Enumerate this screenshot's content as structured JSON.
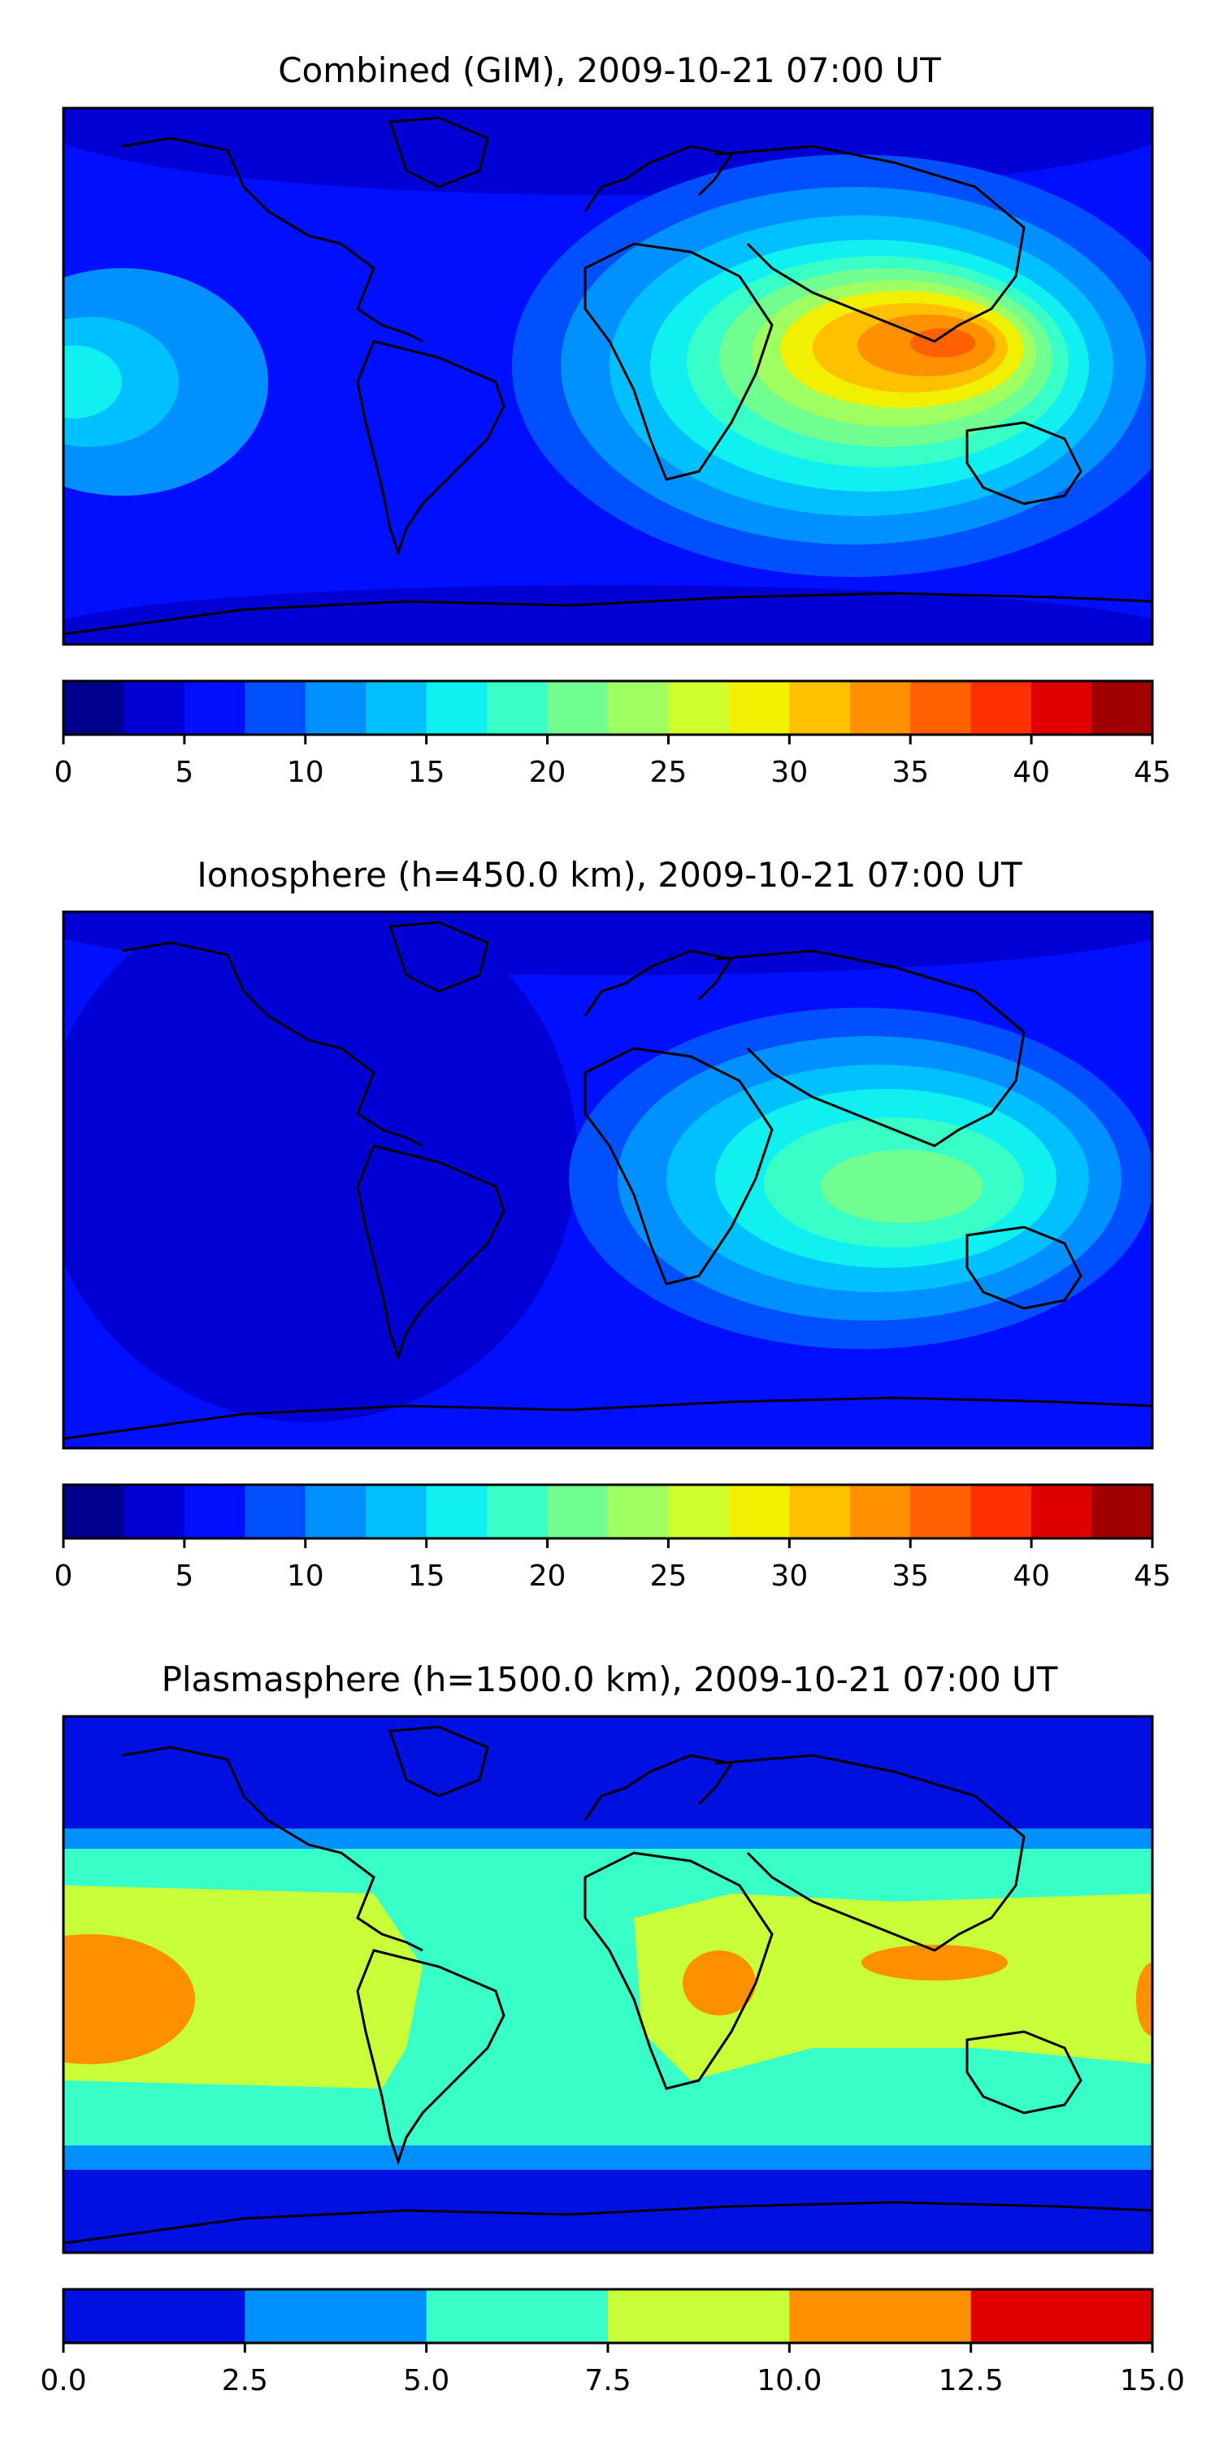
{
  "panels": [
    {
      "title": "Combined (GIM), 2009-10-21 07:00 UT",
      "colorbar": {
        "min": 0,
        "max": 45,
        "step": 2.5,
        "ticks": [
          "0",
          "5",
          "10",
          "15",
          "20",
          "25",
          "30",
          "35",
          "40",
          "45"
        ],
        "colors": [
          "#00008c",
          "#0000d4",
          "#0010ff",
          "#0050ff",
          "#0090ff",
          "#00c0ff",
          "#10f0f0",
          "#38ffc8",
          "#70ff90",
          "#a0ff60",
          "#d0ff30",
          "#f0f000",
          "#ffc000",
          "#ff9000",
          "#ff6000",
          "#ff3000",
          "#e00000",
          "#a00000"
        ]
      },
      "map_regions": [
        {
          "name": "south-asia-peak",
          "level": 35
        },
        {
          "name": "southeast-asia",
          "level": 30
        },
        {
          "name": "indian-ocean",
          "level": 25
        },
        {
          "name": "africa-asia-band",
          "level": 20
        },
        {
          "name": "pacific-west-anomaly",
          "level": 15
        },
        {
          "name": "polar-background",
          "level": 5
        }
      ]
    },
    {
      "title": "Ionosphere  (h=450.0 km), 2009-10-21 07:00 UT",
      "colorbar": {
        "min": 0,
        "max": 45,
        "step": 2.5,
        "ticks": [
          "0",
          "5",
          "10",
          "15",
          "20",
          "25",
          "30",
          "35",
          "40",
          "45"
        ],
        "colors": [
          "#00008c",
          "#0000d4",
          "#0010ff",
          "#0050ff",
          "#0090ff",
          "#00c0ff",
          "#10f0f0",
          "#38ffc8",
          "#70ff90",
          "#a0ff60",
          "#d0ff30",
          "#f0f000",
          "#ffc000",
          "#ff9000",
          "#ff6000",
          "#ff3000",
          "#e00000",
          "#a00000"
        ]
      },
      "map_regions": [
        {
          "name": "indian-ocean-peak",
          "level": 22.5
        },
        {
          "name": "asia-band",
          "level": 17.5
        },
        {
          "name": "africa-asia-band",
          "level": 12.5
        },
        {
          "name": "americas-background",
          "level": 2.5
        },
        {
          "name": "polar-background",
          "level": 5
        }
      ]
    },
    {
      "title": "Plasmasphere (h=1500.0 km), 2009-10-21 07:00 UT",
      "colorbar": {
        "min": 0,
        "max": 15,
        "step": 2.5,
        "ticks": [
          "0.0",
          "2.5",
          "5.0",
          "7.5",
          "10.0",
          "12.5",
          "15.0"
        ],
        "colors": [
          "#0010e0",
          "#0090ff",
          "#38ffc8",
          "#c8ff38",
          "#ff9000",
          "#e00000"
        ]
      },
      "map_regions": [
        {
          "name": "equatorial-band",
          "level": 10
        },
        {
          "name": "pacific-peak",
          "level": 12.5
        },
        {
          "name": "africa-peak",
          "level": 12.5
        },
        {
          "name": "mid-latitude-band",
          "level": 5
        },
        {
          "name": "polar-background",
          "level": 0
        }
      ]
    }
  ]
}
